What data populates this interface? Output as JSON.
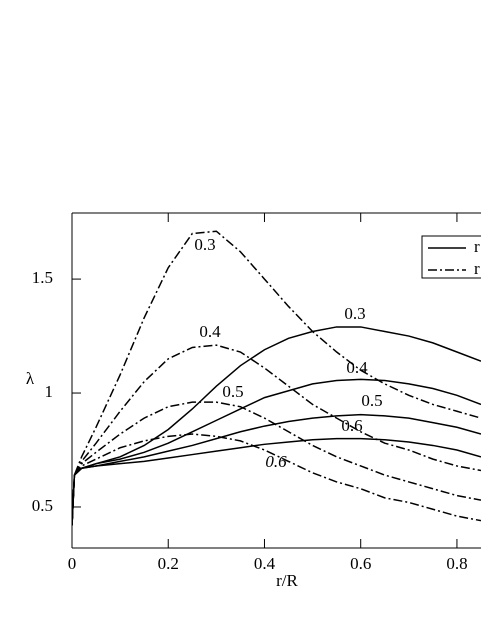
{
  "chart_data": {
    "type": "line",
    "x_label": "r/R",
    "y_label": "λ",
    "xlim": [
      0,
      0.85
    ],
    "ylim": [
      0.32,
      1.79
    ],
    "xticks": [
      0,
      0.2,
      0.4,
      0.6,
      0.8
    ],
    "yticks": [
      0.5,
      1,
      1.5
    ],
    "color": "#000000",
    "legend_position": "upper right",
    "legend": [
      {
        "label": "r",
        "style": "solid"
      },
      {
        "label": "r",
        "style": "dashdot"
      }
    ],
    "x": [
      0,
      0.005,
      0.02,
      0.05,
      0.1,
      0.15,
      0.2,
      0.25,
      0.3,
      0.35,
      0.4,
      0.45,
      0.5,
      0.55,
      0.6,
      0.65,
      0.7,
      0.75,
      0.8,
      0.85
    ],
    "series": [
      {
        "name": "0.3",
        "style": "solid",
        "values": [
          0.42,
          0.64,
          0.67,
          0.69,
          0.72,
          0.77,
          0.84,
          0.93,
          1.03,
          1.12,
          1.19,
          1.24,
          1.27,
          1.29,
          1.29,
          1.27,
          1.25,
          1.22,
          1.18,
          1.14
        ]
      },
      {
        "name": "0.4",
        "style": "solid",
        "values": [
          0.42,
          0.64,
          0.67,
          0.69,
          0.71,
          0.74,
          0.78,
          0.83,
          0.88,
          0.93,
          0.98,
          1.01,
          1.04,
          1.055,
          1.06,
          1.055,
          1.04,
          1.02,
          0.99,
          0.95
        ]
      },
      {
        "name": "0.5",
        "style": "solid",
        "values": [
          0.42,
          0.64,
          0.67,
          0.68,
          0.7,
          0.72,
          0.745,
          0.77,
          0.8,
          0.83,
          0.855,
          0.875,
          0.89,
          0.9,
          0.905,
          0.9,
          0.89,
          0.87,
          0.85,
          0.82
        ]
      },
      {
        "name": "0.6",
        "style": "solid",
        "values": [
          0.42,
          0.64,
          0.67,
          0.68,
          0.69,
          0.7,
          0.715,
          0.73,
          0.745,
          0.76,
          0.775,
          0.785,
          0.795,
          0.8,
          0.8,
          0.795,
          0.785,
          0.77,
          0.75,
          0.72
        ]
      },
      {
        "name": "0.3",
        "style": "dashdot",
        "values": [
          0.42,
          0.64,
          0.72,
          0.85,
          1.08,
          1.33,
          1.55,
          1.7,
          1.71,
          1.62,
          1.5,
          1.38,
          1.27,
          1.18,
          1.1,
          1.04,
          0.99,
          0.95,
          0.92,
          0.89
        ]
      },
      {
        "name": "0.4",
        "style": "dashdot",
        "values": [
          0.42,
          0.64,
          0.7,
          0.78,
          0.92,
          1.05,
          1.15,
          1.2,
          1.21,
          1.18,
          1.11,
          1.03,
          0.95,
          0.89,
          0.83,
          0.78,
          0.75,
          0.71,
          0.68,
          0.66
        ]
      },
      {
        "name": "0.5",
        "style": "dashdot",
        "values": [
          0.42,
          0.64,
          0.69,
          0.74,
          0.82,
          0.89,
          0.94,
          0.96,
          0.96,
          0.94,
          0.89,
          0.83,
          0.77,
          0.72,
          0.68,
          0.64,
          0.61,
          0.58,
          0.55,
          0.53
        ]
      },
      {
        "name": "0.6",
        "style": "dashdot",
        "values": [
          0.42,
          0.64,
          0.68,
          0.71,
          0.76,
          0.79,
          0.81,
          0.82,
          0.81,
          0.79,
          0.75,
          0.7,
          0.65,
          0.61,
          0.58,
          0.54,
          0.52,
          0.49,
          0.46,
          0.44
        ]
      }
    ]
  }
}
